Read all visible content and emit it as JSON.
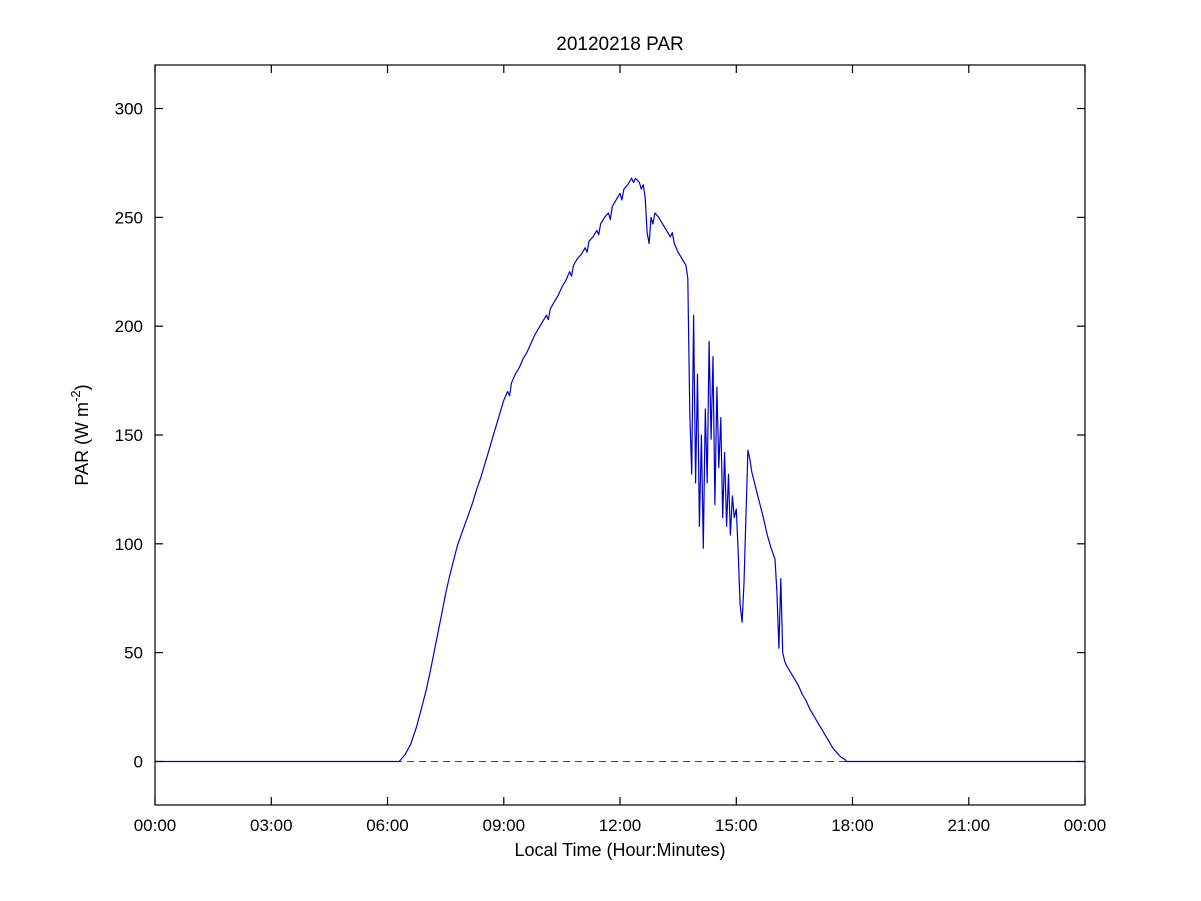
{
  "chart_data": {
    "type": "line",
    "title": "20120218 PAR",
    "xlabel": "Local Time (Hour:Minutes)",
    "ylabel": "PAR (W m⁻²)",
    "ylabel_parts": {
      "base": "PAR (W m",
      "sup": "-2",
      "close": ")"
    },
    "xlim": [
      0,
      24
    ],
    "ylim": [
      -20,
      320
    ],
    "grid": false,
    "background": "#FFFFFF",
    "axis_color": "#000000",
    "xtick_values": [
      0,
      3,
      6,
      9,
      12,
      15,
      18,
      21,
      24
    ],
    "xtick_labels": [
      "00:00",
      "03:00",
      "06:00",
      "09:00",
      "12:00",
      "15:00",
      "18:00",
      "21:00",
      "00:00"
    ],
    "ytick_values": [
      0,
      50,
      100,
      150,
      200,
      250,
      300
    ],
    "ytick_labels": [
      "0",
      "50",
      "100",
      "150",
      "200",
      "250",
      "300"
    ],
    "reference_lines": [
      {
        "name": "zero-line",
        "y": 0,
        "color": "#FF0000",
        "style": "dashed"
      }
    ],
    "series": [
      {
        "name": "PAR",
        "color": "#0000CC",
        "style": "solid",
        "points": [
          [
            0,
            0
          ],
          [
            1,
            0
          ],
          [
            2,
            0
          ],
          [
            3,
            0
          ],
          [
            4,
            0
          ],
          [
            5,
            0
          ],
          [
            6,
            0
          ],
          [
            6.3,
            0
          ],
          [
            6.45,
            3
          ],
          [
            6.6,
            8
          ],
          [
            6.75,
            16
          ],
          [
            6.9,
            26
          ],
          [
            7.0,
            33
          ],
          [
            7.1,
            41
          ],
          [
            7.2,
            50
          ],
          [
            7.3,
            59
          ],
          [
            7.4,
            68
          ],
          [
            7.5,
            77
          ],
          [
            7.6,
            85
          ],
          [
            7.7,
            92
          ],
          [
            7.8,
            99
          ],
          [
            7.9,
            104
          ],
          [
            8.0,
            109
          ],
          [
            8.1,
            114
          ],
          [
            8.2,
            119
          ],
          [
            8.3,
            125
          ],
          [
            8.4,
            130
          ],
          [
            8.5,
            136
          ],
          [
            8.6,
            142
          ],
          [
            8.7,
            148
          ],
          [
            8.8,
            154
          ],
          [
            8.9,
            160
          ],
          [
            9.0,
            166
          ],
          [
            9.1,
            170
          ],
          [
            9.15,
            168
          ],
          [
            9.2,
            174
          ],
          [
            9.3,
            178
          ],
          [
            9.4,
            181
          ],
          [
            9.5,
            185
          ],
          [
            9.6,
            188
          ],
          [
            9.7,
            192
          ],
          [
            9.8,
            196
          ],
          [
            9.9,
            199
          ],
          [
            10.0,
            202
          ],
          [
            10.1,
            205
          ],
          [
            10.15,
            203
          ],
          [
            10.2,
            208
          ],
          [
            10.3,
            211
          ],
          [
            10.4,
            214
          ],
          [
            10.5,
            218
          ],
          [
            10.6,
            221
          ],
          [
            10.7,
            225
          ],
          [
            10.75,
            223
          ],
          [
            10.8,
            228
          ],
          [
            10.9,
            231
          ],
          [
            11.0,
            233
          ],
          [
            11.1,
            236
          ],
          [
            11.15,
            234
          ],
          [
            11.2,
            239
          ],
          [
            11.3,
            241
          ],
          [
            11.4,
            244
          ],
          [
            11.45,
            242
          ],
          [
            11.5,
            247
          ],
          [
            11.6,
            250
          ],
          [
            11.7,
            252
          ],
          [
            11.75,
            249
          ],
          [
            11.8,
            255
          ],
          [
            11.9,
            258
          ],
          [
            12.0,
            261
          ],
          [
            12.05,
            258
          ],
          [
            12.1,
            263
          ],
          [
            12.2,
            265
          ],
          [
            12.3,
            268
          ],
          [
            12.35,
            266
          ],
          [
            12.4,
            268
          ],
          [
            12.5,
            266
          ],
          [
            12.55,
            263
          ],
          [
            12.6,
            265
          ],
          [
            12.65,
            259
          ],
          [
            12.7,
            243
          ],
          [
            12.75,
            238
          ],
          [
            12.8,
            250
          ],
          [
            12.85,
            247
          ],
          [
            12.9,
            252
          ],
          [
            13.0,
            250
          ],
          [
            13.1,
            247
          ],
          [
            13.2,
            244
          ],
          [
            13.3,
            241
          ],
          [
            13.35,
            243
          ],
          [
            13.4,
            238
          ],
          [
            13.5,
            234
          ],
          [
            13.6,
            231
          ],
          [
            13.7,
            228
          ],
          [
            13.75,
            222
          ],
          [
            13.8,
            160
          ],
          [
            13.85,
            132
          ],
          [
            13.9,
            205
          ],
          [
            13.95,
            128
          ],
          [
            14.0,
            178
          ],
          [
            14.05,
            108
          ],
          [
            14.1,
            150
          ],
          [
            14.15,
            98
          ],
          [
            14.2,
            162
          ],
          [
            14.25,
            128
          ],
          [
            14.3,
            193
          ],
          [
            14.35,
            148
          ],
          [
            14.4,
            186
          ],
          [
            14.45,
            118
          ],
          [
            14.5,
            172
          ],
          [
            14.55,
            135
          ],
          [
            14.6,
            158
          ],
          [
            14.65,
            112
          ],
          [
            14.7,
            142
          ],
          [
            14.75,
            108
          ],
          [
            14.8,
            132
          ],
          [
            14.85,
            104
          ],
          [
            14.9,
            122
          ],
          [
            14.95,
            112
          ],
          [
            15.0,
            116
          ],
          [
            15.05,
            96
          ],
          [
            15.1,
            72
          ],
          [
            15.15,
            64
          ],
          [
            15.2,
            82
          ],
          [
            15.25,
            112
          ],
          [
            15.3,
            143
          ],
          [
            15.35,
            139
          ],
          [
            15.4,
            133
          ],
          [
            15.5,
            126
          ],
          [
            15.6,
            119
          ],
          [
            15.7,
            112
          ],
          [
            15.8,
            104
          ],
          [
            15.9,
            98
          ],
          [
            16.0,
            93
          ],
          [
            16.05,
            78
          ],
          [
            16.1,
            52
          ],
          [
            16.15,
            84
          ],
          [
            16.2,
            50
          ],
          [
            16.25,
            46
          ],
          [
            16.3,
            44
          ],
          [
            16.4,
            41
          ],
          [
            16.5,
            38
          ],
          [
            16.6,
            35
          ],
          [
            16.7,
            31
          ],
          [
            16.8,
            28
          ],
          [
            16.9,
            24
          ],
          [
            17.0,
            21
          ],
          [
            17.1,
            18
          ],
          [
            17.2,
            15
          ],
          [
            17.3,
            12
          ],
          [
            17.4,
            9
          ],
          [
            17.5,
            6
          ],
          [
            17.6,
            4
          ],
          [
            17.7,
            2
          ],
          [
            17.8,
            1
          ],
          [
            17.85,
            0
          ],
          [
            18.0,
            0
          ],
          [
            19.0,
            0
          ],
          [
            20.0,
            0
          ],
          [
            21.0,
            0
          ],
          [
            22.0,
            0
          ],
          [
            23.0,
            0
          ],
          [
            24.0,
            0
          ]
        ]
      }
    ]
  }
}
